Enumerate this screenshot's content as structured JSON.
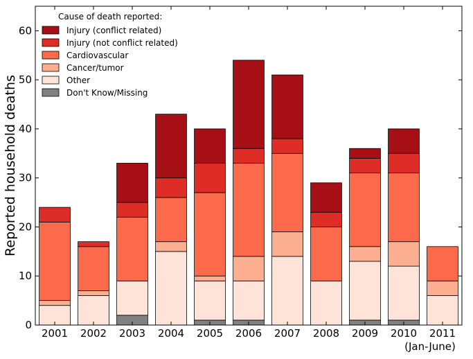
{
  "chart_data": {
    "type": "bar",
    "stacked": true,
    "title": "",
    "xlabel": "",
    "ylabel": "Reported household deaths",
    "ylim": [
      0,
      65
    ],
    "yticks": [
      0,
      10,
      20,
      30,
      40,
      50,
      60
    ],
    "categories": [
      "2001",
      "2002",
      "2003",
      "2004",
      "2005",
      "2006",
      "2007",
      "2008",
      "2009",
      "2010",
      "2011"
    ],
    "category_sublabels": [
      "",
      "",
      "",
      "",
      "",
      "",
      "",
      "",
      "",
      "",
      "(Jan-June)"
    ],
    "legend_title": "Cause of death reported:",
    "legend_position": "top-left",
    "series": [
      {
        "name": "Don't Know/Missing",
        "color": "#808080",
        "values": [
          0,
          0,
          2,
          0,
          1,
          1,
          0,
          0,
          1,
          1,
          0
        ]
      },
      {
        "name": "Other",
        "color": "#fee4d8",
        "values": [
          4,
          6,
          7,
          15,
          8,
          8,
          14,
          9,
          12,
          11,
          6
        ]
      },
      {
        "name": "Cancer/tumor",
        "color": "#fcae91",
        "values": [
          1,
          1,
          0,
          2,
          1,
          5,
          5,
          0,
          3,
          5,
          3
        ]
      },
      {
        "name": "Cardiovascular",
        "color": "#fb6a4a",
        "values": [
          16,
          9,
          13,
          9,
          17,
          19,
          16,
          11,
          15,
          14,
          7
        ]
      },
      {
        "name": "Injury (not conflict related)",
        "color": "#de2d26",
        "values": [
          3,
          1,
          3,
          4,
          6,
          3,
          3,
          3,
          3,
          4,
          0
        ]
      },
      {
        "name": "Injury (conflict related)",
        "color": "#a50f15",
        "values": [
          0,
          0,
          8,
          13,
          7,
          18,
          13,
          6,
          2,
          5,
          0
        ]
      }
    ],
    "legend_order": [
      5,
      4,
      3,
      2,
      1,
      0
    ]
  }
}
